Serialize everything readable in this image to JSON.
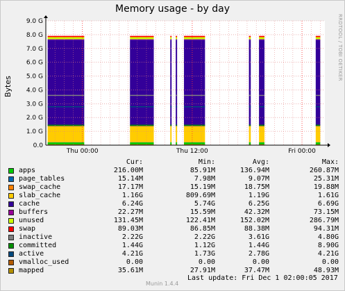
{
  "title": "Memory usage - by day",
  "side_label": "RRDTOOL / TOBI OETIKER",
  "footer": {
    "version": "Munin 1.4.4",
    "last_update": "Last update:  Fri Dec  1 02:00:05 2017"
  },
  "legend_headers": {
    "cur": "Cur:",
    "min": "Min:",
    "avg": "Avg:",
    "max": "Max:"
  },
  "legend": [
    {
      "name": "apps",
      "color": "#00cc00",
      "cur": "216.00M",
      "min": "85.91M",
      "avg": "136.94M",
      "max": "260.87M"
    },
    {
      "name": "page_tables",
      "color": "#0066b3",
      "cur": "15.14M",
      "min": "7.98M",
      "avg": "9.07M",
      "max": "25.31M"
    },
    {
      "name": "swap_cache",
      "color": "#ff8000",
      "cur": "17.17M",
      "min": "15.19M",
      "avg": "18.75M",
      "max": "19.88M"
    },
    {
      "name": "slab_cache",
      "color": "#ffcc00",
      "cur": "1.16G",
      "min": "809.69M",
      "avg": "1.19G",
      "max": "1.61G"
    },
    {
      "name": "cache",
      "color": "#330099",
      "cur": "6.24G",
      "min": "5.74G",
      "avg": "6.25G",
      "max": "6.69G"
    },
    {
      "name": "buffers",
      "color": "#990099",
      "cur": "22.27M",
      "min": "15.59M",
      "avg": "42.32M",
      "max": "73.15M"
    },
    {
      "name": "unused",
      "color": "#ccff00",
      "cur": "131.45M",
      "min": "122.41M",
      "avg": "152.02M",
      "max": "286.79M"
    },
    {
      "name": "swap",
      "color": "#ff0000",
      "cur": "89.03M",
      "min": "86.85M",
      "avg": "88.38M",
      "max": "94.31M"
    },
    {
      "name": "inactive",
      "color": "#808080",
      "cur": "2.22G",
      "min": "2.22G",
      "avg": "3.61G",
      "max": "4.80G"
    },
    {
      "name": "committed",
      "color": "#008f00",
      "cur": "1.44G",
      "min": "1.12G",
      "avg": "1.44G",
      "max": "8.90G"
    },
    {
      "name": "active",
      "color": "#00487d",
      "cur": "4.21G",
      "min": "1.73G",
      "avg": "2.78G",
      "max": "4.21G"
    },
    {
      "name": "vmalloc_used",
      "color": "#b35a00",
      "cur": "0.00",
      "min": "0.00",
      "avg": "0.00",
      "max": "0.00"
    },
    {
      "name": "mapped",
      "color": "#b38f00",
      "cur": "35.61M",
      "min": "27.91M",
      "avg": "37.47M",
      "max": "48.93M"
    }
  ],
  "chart_data": {
    "type": "area",
    "ylabel": "Bytes",
    "ylim": [
      0,
      9.0
    ],
    "y_ticks": [
      "0.0",
      "1.0 G",
      "2.0 G",
      "3.0 G",
      "4.0 G",
      "5.0 G",
      "6.0 G",
      "7.0 G",
      "8.0 G",
      "9.0 G"
    ],
    "x_ticks": [
      {
        "label": "Thu 00:00",
        "hour": 0
      },
      {
        "label": "Thu 12:00",
        "hour": 12
      },
      {
        "label": "Fri 00:00",
        "hour": 24
      }
    ],
    "xlim_hours": [
      -4,
      26.5
    ],
    "data_windows_hours": [
      [
        -3.8,
        0.2
      ],
      [
        5.2,
        7.8
      ],
      [
        9.6,
        9.75
      ],
      [
        10.2,
        10.35
      ],
      [
        11.1,
        13.4
      ],
      [
        18.2,
        18.4
      ],
      [
        19.3,
        19.9
      ],
      [
        25.5,
        26.0
      ]
    ],
    "stacked_typical": {
      "apps_G": 0.2,
      "page_tables_G": 0.01,
      "swap_cache_G": 0.02,
      "slab_cache_G": 1.15,
      "cache_G": 6.25,
      "buffers_G": 0.04,
      "unused_G": 0.15,
      "swap_G": 0.09
    },
    "lines_typical": {
      "inactive_G": 3.6,
      "committed_G": 1.44,
      "active_G": 2.78,
      "mapped_G": 0.04
    },
    "grid": true
  }
}
